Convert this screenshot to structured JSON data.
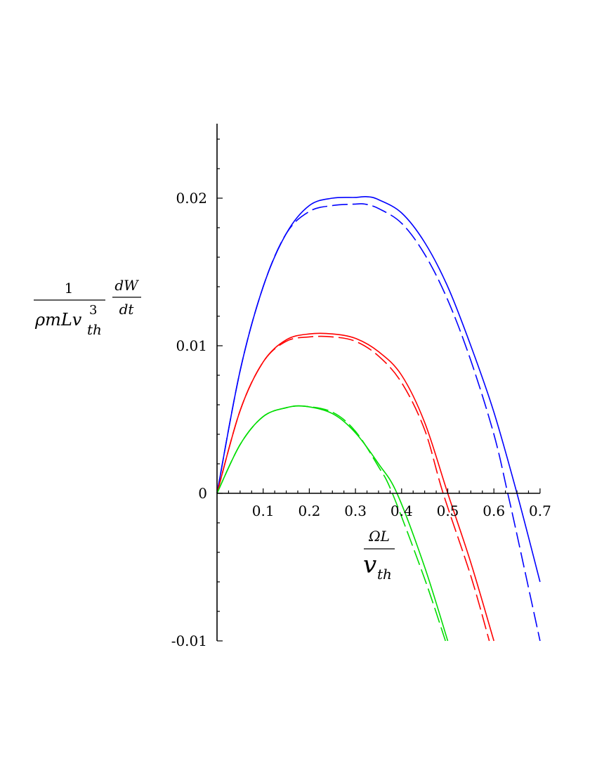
{
  "chart_data": {
    "type": "line",
    "title": "",
    "xlabel": {
      "numerator": "ΩL",
      "denominator_base": "v",
      "denominator_sub": "th"
    },
    "ylabel": {
      "fraction1_numerator": "1",
      "fraction1_denominator_base": "ρmLv",
      "fraction1_denominator_sup": "3",
      "fraction1_denominator_sub": "th",
      "fraction2_numerator": "dW",
      "fraction2_denominator": "dt"
    },
    "xlim": [
      0,
      0.7
    ],
    "ylim": [
      -0.01,
      0.025
    ],
    "xticks": [
      {
        "value": 0.1,
        "label": "0.1"
      },
      {
        "value": 0.2,
        "label": "0.2"
      },
      {
        "value": 0.3,
        "label": "0.3"
      },
      {
        "value": 0.4,
        "label": "0.4"
      },
      {
        "value": 0.5,
        "label": "0.5"
      },
      {
        "value": 0.6,
        "label": "0.6"
      },
      {
        "value": 0.7,
        "label": "0.7"
      }
    ],
    "yticks": [
      {
        "value": -0.01,
        "label": "-0.01"
      },
      {
        "value": 0,
        "label": "0"
      },
      {
        "value": 0.01,
        "label": "0.01"
      },
      {
        "value": 0.02,
        "label": "0.02"
      }
    ],
    "grid": false,
    "legend": "none",
    "series": [
      {
        "color": "#0000ff",
        "style": "solid",
        "x": [
          0,
          0.05,
          0.1,
          0.15,
          0.2,
          0.25,
          0.3,
          0.325,
          0.35,
          0.4,
          0.45,
          0.5,
          0.55,
          0.6,
          0.65,
          0.7
        ],
        "y": [
          0,
          0.0083,
          0.014,
          0.0176,
          0.0195,
          0.02,
          0.02005,
          0.0201,
          0.0199,
          0.019,
          0.017,
          0.014,
          0.01,
          0.0055,
          0.0,
          -0.006
        ]
      },
      {
        "color": "#0000ff",
        "style": "dashed",
        "x": [
          0,
          0.05,
          0.1,
          0.15,
          0.2,
          0.25,
          0.3,
          0.32,
          0.35,
          0.4,
          0.45,
          0.5,
          0.55,
          0.6,
          0.63,
          0.65,
          0.7
        ],
        "y": [
          0,
          0.0083,
          0.014,
          0.0176,
          0.0191,
          0.0195,
          0.0196,
          0.0196,
          0.0193,
          0.0183,
          0.0162,
          0.0131,
          0.009,
          0.004,
          0.0,
          -0.0028,
          -0.01
        ]
      },
      {
        "color": "#ff0000",
        "style": "solid",
        "x": [
          0,
          0.05,
          0.1,
          0.15,
          0.2,
          0.25,
          0.3,
          0.35,
          0.4,
          0.45,
          0.5,
          0.55,
          0.6
        ],
        "y": [
          0,
          0.0056,
          0.0089,
          0.0104,
          0.0108,
          0.0108,
          0.0105,
          0.0096,
          0.008,
          0.0048,
          0.0,
          -0.0047,
          -0.01
        ]
      },
      {
        "color": "#ff0000",
        "style": "dashed",
        "x": [
          0,
          0.05,
          0.1,
          0.15,
          0.2,
          0.25,
          0.3,
          0.35,
          0.4,
          0.45,
          0.49,
          0.55,
          0.59
        ],
        "y": [
          0,
          0.0056,
          0.0089,
          0.0103,
          0.0106,
          0.0106,
          0.0103,
          0.0093,
          0.0075,
          0.0043,
          0.0,
          -0.0056,
          -0.01
        ]
      },
      {
        "color": "#00dd00",
        "style": "solid",
        "x": [
          0,
          0.05,
          0.1,
          0.15,
          0.19,
          0.25,
          0.3,
          0.35,
          0.39,
          0.45,
          0.5
        ],
        "y": [
          0,
          0.0033,
          0.0052,
          0.0058,
          0.0059,
          0.0054,
          0.0041,
          0.002,
          0.0,
          -0.005,
          -0.01
        ]
      },
      {
        "color": "#00dd00",
        "style": "dashed",
        "x": [
          0,
          0.05,
          0.1,
          0.15,
          0.19,
          0.25,
          0.3,
          0.35,
          0.38,
          0.45,
          0.495
        ],
        "y": [
          0,
          0.0033,
          0.0052,
          0.0058,
          0.0059,
          0.0055,
          0.0042,
          0.0018,
          0.0,
          -0.0058,
          -0.01
        ]
      }
    ]
  }
}
